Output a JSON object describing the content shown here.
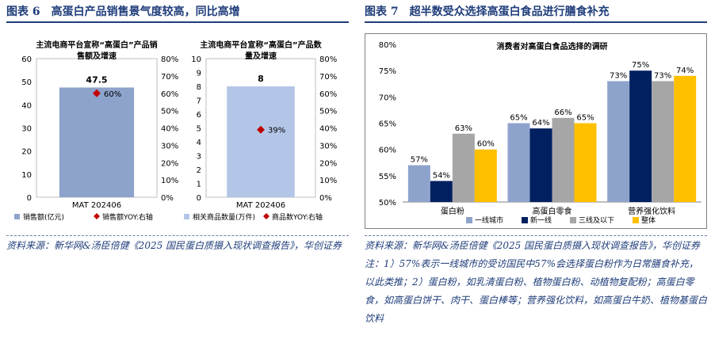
{
  "figure6": {
    "title": "图表 6　高蛋白产品销售景气度较高，同比高增",
    "source": "资料来源：新华网&汤臣倍健《2025 国民蛋白质摄入现状调查报告》，华创证券"
  },
  "figure7": {
    "title": "图表 7　超半数受众选择高蛋白食品进行膳食补充",
    "source": "资料来源：新华网&汤臣倍健《2025 国民蛋白质摄入现状调查报告》，华创证券 注：1）57%表示一线城市的受访国民中57%会选择蛋白粉作为日常膳食补充，以此类推；2）蛋白粉，如乳清蛋白粉、植物蛋白粉、动植物复配粉；高蛋白零食，如高蛋白饼干、肉干、蛋白棒等；营养强化饮料，如高蛋白牛奶、植物基蛋白饮料"
  },
  "chart_data": [
    {
      "type": "bar",
      "title": "主流电商平台宣称“高蛋白”产品销售额及增速",
      "categories": [
        "MAT 202406"
      ],
      "series": [
        {
          "name": "销售额(亿元)",
          "values": [
            47.5
          ],
          "axis": "left",
          "color": "#8ea3cc"
        },
        {
          "name": "销售额YOY:右轴",
          "values": [
            0.6
          ],
          "axis": "right",
          "marker": "diamond",
          "color": "#c00000"
        }
      ],
      "bar_labels": [
        "47.5"
      ],
      "point_labels": [
        "60%"
      ],
      "ylim": [
        0,
        60
      ],
      "yticks": [
        "0",
        "10",
        "20",
        "30",
        "40",
        "50",
        "60"
      ],
      "y2lim": [
        0,
        0.8
      ],
      "y2ticks": [
        "0%",
        "10%",
        "20%",
        "30%",
        "40%",
        "50%",
        "60%",
        "70%",
        "80%"
      ],
      "legend": "bottom"
    },
    {
      "type": "bar",
      "title": "主流电商平台宣称“高蛋白”产品数量及增速",
      "categories": [
        "MAT 202406"
      ],
      "series": [
        {
          "name": "相关商品数量(万件)",
          "values": [
            8
          ],
          "axis": "left",
          "color": "#b4c6e7"
        },
        {
          "name": "商品数YOY:右轴",
          "values": [
            0.39
          ],
          "axis": "right",
          "marker": "diamond",
          "color": "#c00000"
        }
      ],
      "bar_labels": [
        "8"
      ],
      "point_labels": [
        "39%"
      ],
      "ylim": [
        0,
        10
      ],
      "yticks": [
        "0",
        "1",
        "2",
        "3",
        "4",
        "5",
        "6",
        "7",
        "8",
        "9",
        "10"
      ],
      "y2lim": [
        0,
        0.8
      ],
      "y2ticks": [
        "0%",
        "10%",
        "20%",
        "30%",
        "40%",
        "50%",
        "60%",
        "70%",
        "80%"
      ],
      "legend": "bottom"
    },
    {
      "type": "bar",
      "title": "消费者对高蛋白食品选择的调研",
      "categories": [
        "蛋白粉",
        "高蛋白零食",
        "营养强化饮料"
      ],
      "series": [
        {
          "name": "一线城市",
          "values": [
            0.57,
            0.65,
            0.73
          ],
          "color": "#8ea3cc"
        },
        {
          "name": "新一线",
          "values": [
            0.54,
            0.64,
            0.75
          ],
          "color": "#002060"
        },
        {
          "name": "三线及以下",
          "values": [
            0.63,
            0.66,
            0.73
          ],
          "color": "#a6a6a6"
        },
        {
          "name": "整体",
          "values": [
            0.6,
            0.65,
            0.74
          ],
          "color": "#ffc000"
        }
      ],
      "data_labels": [
        [
          "57%",
          "65%",
          "73%"
        ],
        [
          "54%",
          "64%",
          "75%"
        ],
        [
          "63%",
          "66%",
          "73%"
        ],
        [
          "60%",
          "65%",
          "74%"
        ]
      ],
      "ylim": [
        0.5,
        0.8
      ],
      "yticks": [
        "50%",
        "55%",
        "60%",
        "65%",
        "70%",
        "75%",
        "80%"
      ],
      "legend": "bottom"
    }
  ]
}
